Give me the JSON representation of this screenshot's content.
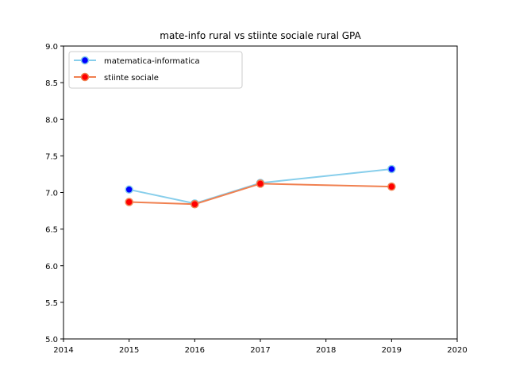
{
  "chart_data": {
    "type": "line",
    "title": "mate-info rural vs stiinte sociale rural GPA",
    "xlabel": "",
    "ylabel": "",
    "xlim": [
      2014,
      2020
    ],
    "ylim": [
      5.0,
      9.0
    ],
    "xticks": [
      "2014",
      "2015",
      "2016",
      "2017",
      "2018",
      "2019",
      "2020"
    ],
    "yticks": [
      "5.0",
      "5.5",
      "6.0",
      "6.5",
      "7.0",
      "7.5",
      "8.0",
      "8.5",
      "9.0"
    ],
    "grid": false,
    "legend_position": "top-left",
    "series": [
      {
        "name": "matematica-informatica",
        "line_color": "#87ceeb",
        "marker_color": "#0000ff",
        "marker_edge": "#87ceeb",
        "points": [
          {
            "x": 2015,
            "y": 7.04
          },
          {
            "x": 2016,
            "y": 6.85
          },
          {
            "x": 2017,
            "y": 7.13
          },
          {
            "x": 2019,
            "y": 7.32
          }
        ]
      },
      {
        "name": "stiinte sociale",
        "line_color": "#f08050",
        "marker_color": "#ff0000",
        "marker_edge": "#f08050",
        "points": [
          {
            "x": 2015,
            "y": 6.87
          },
          {
            "x": 2016,
            "y": 6.84
          },
          {
            "x": 2017,
            "y": 7.12
          },
          {
            "x": 2019,
            "y": 7.08
          }
        ]
      }
    ]
  }
}
